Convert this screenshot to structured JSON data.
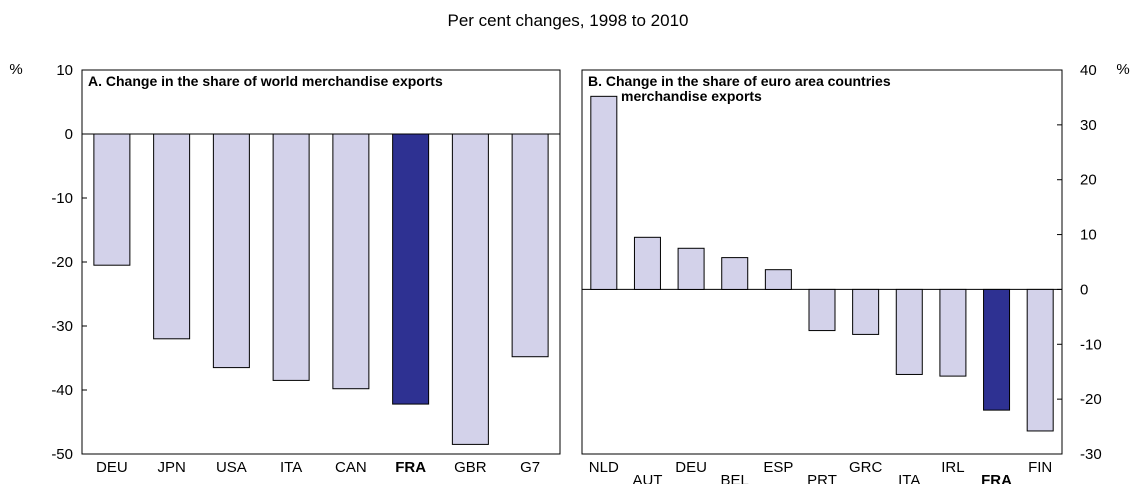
{
  "figure": {
    "title": "Per cent changes, 1998 to 2010",
    "unit_left": "%",
    "unit_right": "%"
  },
  "colors": {
    "bar": "#d3d2ea",
    "highlight": "#2e3192",
    "stroke": "#000000"
  },
  "chart_data": [
    {
      "type": "bar",
      "title": "A. Change in the share of world merchandise exports",
      "categories": [
        "DEU",
        "JPN",
        "USA",
        "ITA",
        "CAN",
        "FRA",
        "GBR",
        "G7"
      ],
      "values": [
        -20.5,
        -32,
        -36.5,
        -38.5,
        -39.8,
        -42.2,
        -48.5,
        -34.8
      ],
      "highlight": [
        "FRA"
      ],
      "ylim": [
        -50,
        10
      ],
      "yticks": [
        10,
        0,
        -10,
        -20,
        -30,
        -40,
        -50
      ],
      "ylabel": "%",
      "axis_side": "left",
      "grid": false,
      "xlabel": ""
    },
    {
      "type": "bar",
      "title_lines": [
        "B. Change in the share of euro area countries",
        "merchandise exports"
      ],
      "categories": [
        "NLD",
        "AUT",
        "DEU",
        "BEL",
        "ESP",
        "PRT",
        "GRC",
        "ITA",
        "IRL",
        "FRA",
        "FIN"
      ],
      "values": [
        35.2,
        9.5,
        7.5,
        5.8,
        3.6,
        -7.5,
        -8.2,
        -15.5,
        -15.8,
        -22,
        -25.8
      ],
      "highlight": [
        "FRA"
      ],
      "ylim": [
        -30,
        40
      ],
      "yticks": [
        40,
        30,
        20,
        10,
        0,
        -10,
        -20,
        -30
      ],
      "ylabel": "%",
      "axis_side": "right",
      "grid": false,
      "xlabel": ""
    }
  ]
}
